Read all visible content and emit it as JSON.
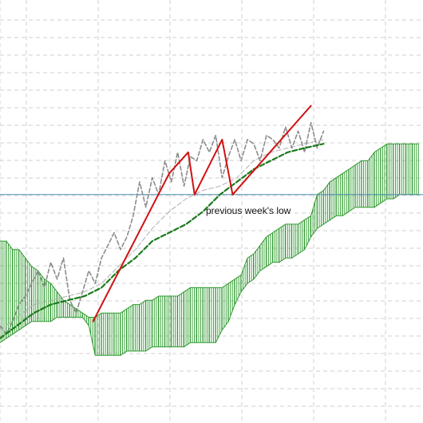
{
  "colors": {
    "background": "#ffffff",
    "grid": "#cfcfcf",
    "cloud": "#2f9a2f",
    "price_line": "#8c8c8c",
    "ma_slow": "#1a7a1a",
    "ma_fast": "#b0b0b0",
    "reference_line": "#4a90b0",
    "trend_line": "#d11010"
  },
  "annotation": {
    "label": "previous week's low"
  },
  "chart_data": {
    "type": "line",
    "x_range": [
      0,
      100
    ],
    "y_range": [
      0,
      100
    ],
    "grid": true,
    "legend": "none",
    "reference_level": 54,
    "cloud": [
      {
        "x": 0,
        "top": 43,
        "bottom": 19
      },
      {
        "x": 1.5,
        "top": 43,
        "bottom": 20
      },
      {
        "x": 3,
        "top": 41,
        "bottom": 21
      },
      {
        "x": 4.5,
        "top": 41,
        "bottom": 22
      },
      {
        "x": 6,
        "top": 39,
        "bottom": 23
      },
      {
        "x": 7.5,
        "top": 37,
        "bottom": 24
      },
      {
        "x": 9,
        "top": 36,
        "bottom": 24
      },
      {
        "x": 10.5,
        "top": 34,
        "bottom": 24
      },
      {
        "x": 12,
        "top": 33,
        "bottom": 24
      },
      {
        "x": 13.5,
        "top": 31,
        "bottom": 25
      },
      {
        "x": 15,
        "top": 29,
        "bottom": 25
      },
      {
        "x": 16.5,
        "top": 28,
        "bottom": 25
      },
      {
        "x": 18,
        "top": 27,
        "bottom": 25
      },
      {
        "x": 19.5,
        "top": 26,
        "bottom": 25
      },
      {
        "x": 21,
        "top": 25,
        "bottom": 23
      },
      {
        "x": 22.5,
        "top": 25,
        "bottom": 16
      },
      {
        "x": 24,
        "top": 26,
        "bottom": 16
      },
      {
        "x": 25.5,
        "top": 26,
        "bottom": 16
      },
      {
        "x": 27,
        "top": 26,
        "bottom": 16
      },
      {
        "x": 28.5,
        "top": 26,
        "bottom": 16
      },
      {
        "x": 30,
        "top": 27,
        "bottom": 17
      },
      {
        "x": 31.5,
        "top": 28,
        "bottom": 17
      },
      {
        "x": 33,
        "top": 28,
        "bottom": 17
      },
      {
        "x": 34.5,
        "top": 29,
        "bottom": 17
      },
      {
        "x": 36,
        "top": 29,
        "bottom": 18
      },
      {
        "x": 37.5,
        "top": 30,
        "bottom": 18
      },
      {
        "x": 39,
        "top": 30,
        "bottom": 18
      },
      {
        "x": 40.5,
        "top": 30,
        "bottom": 18
      },
      {
        "x": 42,
        "top": 30,
        "bottom": 18
      },
      {
        "x": 43.5,
        "top": 31,
        "bottom": 18
      },
      {
        "x": 45,
        "top": 32,
        "bottom": 19
      },
      {
        "x": 46.5,
        "top": 32,
        "bottom": 19
      },
      {
        "x": 48,
        "top": 32,
        "bottom": 19
      },
      {
        "x": 49.5,
        "top": 32,
        "bottom": 19
      },
      {
        "x": 51,
        "top": 32,
        "bottom": 19
      },
      {
        "x": 52.5,
        "top": 32,
        "bottom": 22
      },
      {
        "x": 54,
        "top": 33,
        "bottom": 24
      },
      {
        "x": 55.5,
        "top": 34,
        "bottom": 28
      },
      {
        "x": 57,
        "top": 35,
        "bottom": 31
      },
      {
        "x": 58.5,
        "top": 39,
        "bottom": 33
      },
      {
        "x": 60,
        "top": 40,
        "bottom": 34
      },
      {
        "x": 61.5,
        "top": 42,
        "bottom": 36
      },
      {
        "x": 63,
        "top": 44,
        "bottom": 37
      },
      {
        "x": 64.5,
        "top": 45,
        "bottom": 38
      },
      {
        "x": 66,
        "top": 46,
        "bottom": 38
      },
      {
        "x": 67.5,
        "top": 47,
        "bottom": 39
      },
      {
        "x": 69,
        "top": 47,
        "bottom": 39
      },
      {
        "x": 70.5,
        "top": 47,
        "bottom": 40
      },
      {
        "x": 72,
        "top": 48,
        "bottom": 41
      },
      {
        "x": 73.5,
        "top": 49,
        "bottom": 44
      },
      {
        "x": 75,
        "top": 54,
        "bottom": 46
      },
      {
        "x": 76.5,
        "top": 55,
        "bottom": 47
      },
      {
        "x": 78,
        "top": 57,
        "bottom": 48
      },
      {
        "x": 79.5,
        "top": 58,
        "bottom": 49
      },
      {
        "x": 81,
        "top": 59,
        "bottom": 49
      },
      {
        "x": 82.5,
        "top": 60,
        "bottom": 50
      },
      {
        "x": 84,
        "top": 61,
        "bottom": 51
      },
      {
        "x": 85.5,
        "top": 62,
        "bottom": 51
      },
      {
        "x": 87,
        "top": 62,
        "bottom": 51
      },
      {
        "x": 88.5,
        "top": 64,
        "bottom": 51
      },
      {
        "x": 90,
        "top": 65,
        "bottom": 52
      },
      {
        "x": 91.5,
        "top": 66,
        "bottom": 53
      },
      {
        "x": 93,
        "top": 66,
        "bottom": 53
      },
      {
        "x": 94.5,
        "top": 66,
        "bottom": 54
      },
      {
        "x": 96,
        "top": 66,
        "bottom": 54
      },
      {
        "x": 97.5,
        "top": 66,
        "bottom": 54
      },
      {
        "x": 99,
        "top": 66,
        "bottom": 54
      }
    ],
    "series": [
      {
        "style": "price",
        "x": [
          0,
          1.5,
          3,
          4.5,
          6,
          7.5,
          9,
          10.5,
          12,
          13.5,
          15,
          16.5,
          18,
          19.5,
          21,
          22.5,
          24,
          25.5,
          27,
          28.5,
          30,
          31.5,
          33,
          34.5,
          36,
          37.5,
          39,
          40.5,
          42,
          43.5,
          45,
          46.5,
          48,
          49.5,
          51,
          52.5,
          54,
          55.5,
          57,
          58.5,
          60,
          61.5,
          63,
          64.5,
          66,
          67.5,
          69,
          70.5,
          72,
          73.5,
          75,
          76.5
        ],
        "y": [
          23,
          21,
          24,
          28,
          30,
          33,
          36,
          32,
          38,
          34,
          39,
          29,
          26,
          31,
          36,
          33,
          39,
          42,
          45,
          41,
          44,
          49,
          57,
          51,
          58,
          54,
          62,
          57,
          64,
          56,
          63,
          62,
          67,
          64,
          68,
          58,
          63,
          67,
          62,
          67,
          66,
          62,
          68,
          67,
          65,
          70,
          65,
          69,
          64,
          71,
          65,
          69
        ]
      },
      {
        "style": "ma_slow",
        "x": [
          0,
          4,
          8,
          12,
          16,
          20,
          24,
          28,
          32,
          36,
          40,
          44,
          48,
          52,
          56,
          60,
          64,
          68,
          72,
          76.5
        ],
        "y": [
          20,
          23,
          26,
          28,
          29,
          30,
          32,
          36,
          39,
          43,
          45,
          47,
          50,
          54,
          57,
          60,
          62,
          64,
          65,
          66
        ]
      },
      {
        "style": "ma_fast",
        "x": [
          0,
          4,
          8,
          12,
          16,
          20,
          24,
          28,
          32,
          36,
          40,
          44,
          48,
          52,
          56,
          60,
          64,
          68,
          72,
          76.5
        ],
        "y": [
          22,
          25,
          28,
          29,
          30,
          31,
          33,
          37,
          41,
          46,
          50,
          53,
          55,
          56,
          58,
          62,
          64,
          65,
          66,
          67
        ]
      },
      {
        "style": "trend",
        "x": [
          22,
          40,
          44.5,
          46,
          52.5,
          55,
          73.5
        ],
        "y": [
          24,
          59,
          64,
          54,
          67,
          54,
          75
        ]
      }
    ]
  }
}
